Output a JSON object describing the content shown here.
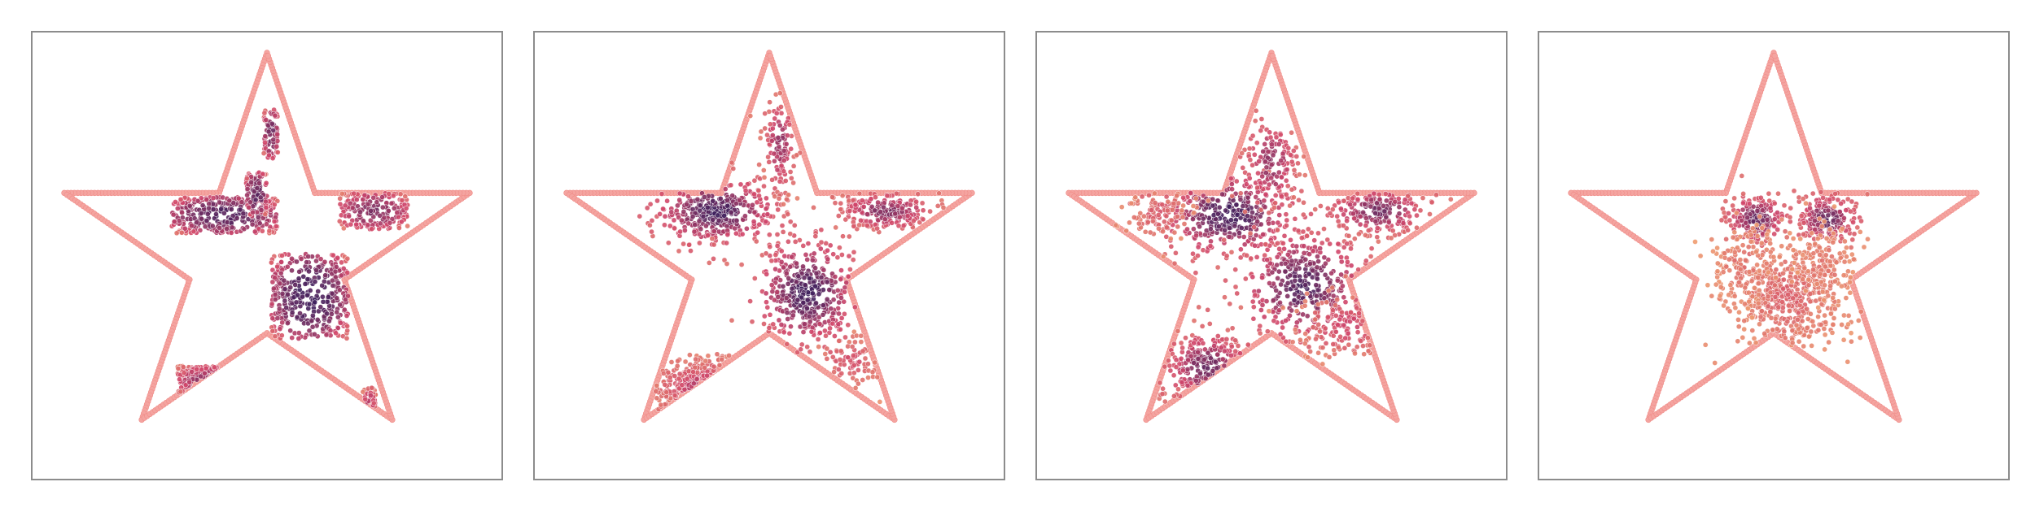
{
  "colors": {
    "boundary": "#f4a4a0",
    "boundary_edge": "#f08c88",
    "density_low": "#f0a070",
    "density_mid": "#d0456a",
    "density_high": "#3d1f5c"
  },
  "chart_data": [
    {
      "type": "scatter",
      "title": "",
      "xlabel": "",
      "ylabel": "",
      "xlim": [
        -1.1,
        1.1
      ],
      "ylim": [
        -1.1,
        1.1
      ],
      "grid": false,
      "legend": "none",
      "boundary": "star",
      "clusters": [
        {
          "x": -0.2,
          "y": 0.2,
          "sx": 0.08,
          "sy": 0.06,
          "n": 320,
          "shape": "block",
          "w": 0.5,
          "h": 0.18,
          "intensity": 0.85
        },
        {
          "x": -0.05,
          "y": 0.3,
          "sx": 0.03,
          "sy": 0.1,
          "n": 110,
          "shape": "block",
          "w": 0.1,
          "h": 0.22,
          "intensity": 0.8
        },
        {
          "x": 0.02,
          "y": 0.6,
          "sx": 0.02,
          "sy": 0.1,
          "n": 70,
          "shape": "block",
          "w": 0.07,
          "h": 0.25,
          "intensity": 0.75
        },
        {
          "x": 0.5,
          "y": 0.22,
          "sx": 0.1,
          "sy": 0.06,
          "n": 200,
          "shape": "block",
          "w": 0.32,
          "h": 0.18,
          "intensity": 0.7
        },
        {
          "x": 0.2,
          "y": -0.2,
          "sx": 0.1,
          "sy": 0.1,
          "n": 380,
          "shape": "block",
          "w": 0.36,
          "h": 0.42,
          "intensity": 0.9
        },
        {
          "x": -0.28,
          "y": -0.62,
          "sx": 0.08,
          "sy": 0.05,
          "n": 150,
          "shape": "block",
          "w": 0.28,
          "h": 0.15,
          "intensity": 0.65
        },
        {
          "x": 0.48,
          "y": -0.72,
          "sx": 0.03,
          "sy": 0.05,
          "n": 40,
          "shape": "block",
          "w": 0.06,
          "h": 0.14,
          "intensity": 0.5
        }
      ]
    },
    {
      "type": "scatter",
      "title": "",
      "xlabel": "",
      "ylabel": "",
      "xlim": [
        -1.1,
        1.1
      ],
      "ylim": [
        -1.1,
        1.1
      ],
      "grid": false,
      "legend": "none",
      "boundary": "star",
      "clusters": [
        {
          "x": -0.25,
          "y": 0.22,
          "sx": 0.14,
          "sy": 0.08,
          "n": 380,
          "shape": "gauss",
          "intensity": 0.9
        },
        {
          "x": 0.05,
          "y": 0.55,
          "sx": 0.04,
          "sy": 0.12,
          "n": 120,
          "shape": "gauss",
          "intensity": 0.65
        },
        {
          "x": 0.55,
          "y": 0.22,
          "sx": 0.12,
          "sy": 0.05,
          "n": 230,
          "shape": "gauss",
          "intensity": 0.7
        },
        {
          "x": 0.18,
          "y": -0.18,
          "sx": 0.12,
          "sy": 0.13,
          "n": 400,
          "shape": "gauss",
          "intensity": 0.9
        },
        {
          "x": -0.3,
          "y": -0.65,
          "sx": 0.12,
          "sy": 0.07,
          "n": 190,
          "shape": "gauss",
          "intensity": 0.55
        },
        {
          "x": 0.38,
          "y": -0.52,
          "sx": 0.08,
          "sy": 0.07,
          "n": 80,
          "shape": "gauss",
          "intensity": 0.4
        }
      ]
    },
    {
      "type": "scatter",
      "title": "",
      "xlabel": "",
      "ylabel": "",
      "xlim": [
        -1.1,
        1.1
      ],
      "ylim": [
        -1.1,
        1.1
      ],
      "grid": false,
      "legend": "none",
      "boundary": "star",
      "clusters": [
        {
          "x": -0.2,
          "y": 0.2,
          "sx": 0.16,
          "sy": 0.1,
          "n": 360,
          "shape": "gauss",
          "intensity": 0.9
        },
        {
          "x": 0.0,
          "y": 0.45,
          "sx": 0.07,
          "sy": 0.13,
          "n": 140,
          "shape": "gauss",
          "intensity": 0.65
        },
        {
          "x": 0.5,
          "y": 0.22,
          "sx": 0.12,
          "sy": 0.06,
          "n": 200,
          "shape": "gauss",
          "intensity": 0.75
        },
        {
          "x": 0.15,
          "y": -0.15,
          "sx": 0.15,
          "sy": 0.14,
          "n": 380,
          "shape": "gauss",
          "intensity": 0.85
        },
        {
          "x": 0.35,
          "y": -0.35,
          "sx": 0.12,
          "sy": 0.09,
          "n": 120,
          "shape": "gauss",
          "intensity": 0.45
        },
        {
          "x": -0.3,
          "y": -0.55,
          "sx": 0.11,
          "sy": 0.09,
          "n": 220,
          "shape": "gauss",
          "intensity": 0.75
        },
        {
          "x": -0.52,
          "y": 0.2,
          "sx": 0.08,
          "sy": 0.07,
          "n": 100,
          "shape": "gauss",
          "intensity": 0.35
        }
      ]
    },
    {
      "type": "scatter",
      "title": "",
      "xlabel": "",
      "ylabel": "",
      "xlim": [
        -1.1,
        1.1
      ],
      "ylim": [
        -1.1,
        1.1
      ],
      "grid": false,
      "legend": "none",
      "boundary": "star",
      "clusters": [
        {
          "x": -0.08,
          "y": 0.18,
          "sx": 0.07,
          "sy": 0.06,
          "n": 220,
          "shape": "gauss",
          "intensity": 0.8
        },
        {
          "x": 0.25,
          "y": 0.18,
          "sx": 0.07,
          "sy": 0.06,
          "n": 220,
          "shape": "gauss",
          "intensity": 0.8
        },
        {
          "x": 0.07,
          "y": -0.2,
          "sx": 0.13,
          "sy": 0.14,
          "n": 520,
          "shape": "gauss",
          "intensity": 0.3
        },
        {
          "x": -0.15,
          "y": -0.05,
          "sx": 0.08,
          "sy": 0.1,
          "n": 120,
          "shape": "gauss",
          "intensity": 0.22
        },
        {
          "x": 0.25,
          "y": -0.05,
          "sx": 0.08,
          "sy": 0.1,
          "n": 120,
          "shape": "gauss",
          "intensity": 0.22
        }
      ]
    }
  ]
}
